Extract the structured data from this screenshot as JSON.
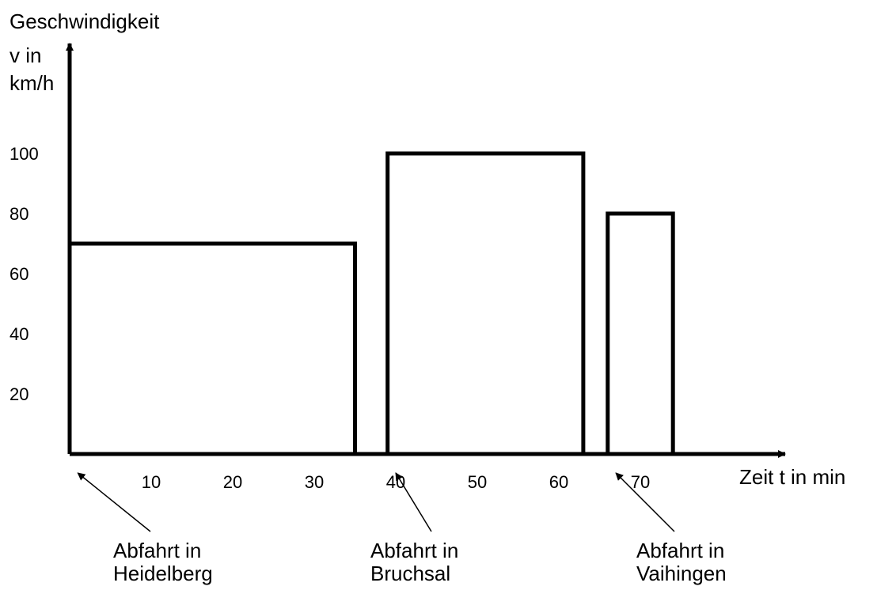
{
  "chart_data": {
    "type": "step",
    "ylabel": [
      "Geschwindigkeit",
      "v in",
      "km/h"
    ],
    "xlabel": "Zeit t in min",
    "x_ticks": [
      10,
      20,
      30,
      40,
      50,
      60,
      70
    ],
    "y_ticks": [
      20,
      40,
      60,
      80,
      100
    ],
    "xlim": [
      0,
      80
    ],
    "ylim": [
      0,
      120
    ],
    "segments": [
      {
        "start": 0,
        "end": 35,
        "speed": 70
      },
      {
        "start": 39,
        "end": 63,
        "speed": 100
      },
      {
        "start": 66,
        "end": 74,
        "speed": 80
      }
    ],
    "annotations": [
      {
        "line1": "Abfahrt in",
        "line2": "Heidelberg",
        "points_to": 1
      },
      {
        "line1": "Abfahrt in",
        "line2": "Bruchsal",
        "points_to": 40
      },
      {
        "line1": "Abfahrt in",
        "line2": "Vaihingen",
        "points_to": 67
      }
    ],
    "colors": {
      "line": "#000000",
      "background": "#ffffff"
    }
  }
}
